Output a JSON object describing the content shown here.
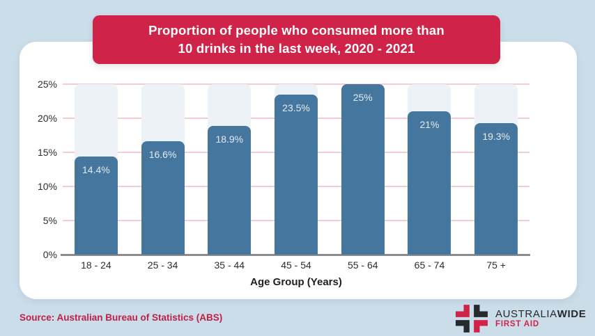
{
  "page": {
    "background_color": "#cbdde9",
    "card_color": "#ffffff"
  },
  "title": {
    "line1": "Proportion of people who consumed more than",
    "line2": "10 drinks in the last week, 2020 - 2021",
    "banner_color": "#d02349",
    "text_color": "#ffffff"
  },
  "chart_data": {
    "type": "bar",
    "title": "Proportion of people who consumed more than 10 drinks in the last week, 2020 - 2021",
    "categories": [
      "18 - 24",
      "25 - 34",
      "35 - 44",
      "45 - 54",
      "55 - 64",
      "65 - 74",
      "75 +"
    ],
    "values": [
      14.4,
      16.6,
      18.9,
      23.5,
      25,
      21,
      19.3
    ],
    "value_labels": [
      "14.4%",
      "16.6%",
      "18.9%",
      "23.5%",
      "25%",
      "21%",
      "19.3%"
    ],
    "xlabel": "Age Group (Years)",
    "ylabel": "",
    "ylim": [
      0,
      25
    ],
    "yticks_top_to_bottom": [
      "25%",
      "20%",
      "15%",
      "10%",
      "5%",
      "0%"
    ],
    "grid": true,
    "legend": "none",
    "bar_color": "#45769d",
    "track_color": "#edf2f6",
    "gridline_color": "#f5cbd3",
    "axis_line_color": "#8c8c8c"
  },
  "footer": {
    "source": "Source: Australian Bureau of Statistics (ABS)",
    "logo": {
      "brand_part1": "AUSTRALIA",
      "brand_part2": "WIDE",
      "brand_line2": "FIRST AID",
      "cross_red": "#d02349",
      "cross_dark": "#26292e"
    }
  }
}
